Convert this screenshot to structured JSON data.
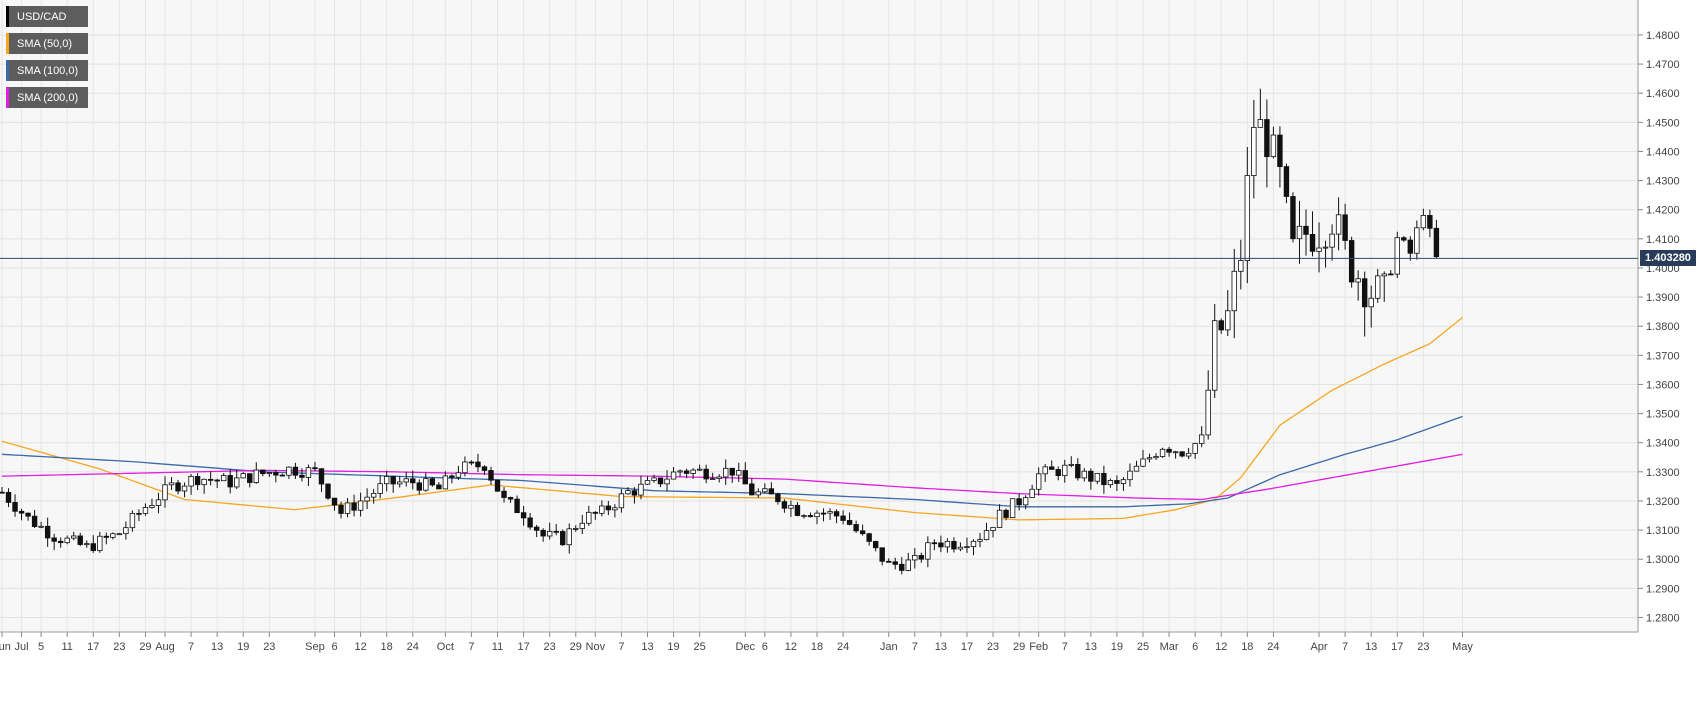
{
  "chart_data": {
    "type": "candlestick",
    "title": "USD/CAD",
    "ylim": [
      1.275,
      1.492
    ],
    "y_ticks": [
      "1.2800",
      "1.2900",
      "1.3000",
      "1.3100",
      "1.3200",
      "1.3300",
      "1.3400",
      "1.3500",
      "1.3600",
      "1.3700",
      "1.3800",
      "1.3900",
      "1.4000",
      "1.4100",
      "1.4200",
      "1.4300",
      "1.4400",
      "1.4500",
      "1.4600",
      "1.4700",
      "1.4800"
    ],
    "x_ticks": [
      {
        "label": "Jun",
        "i": 0
      },
      {
        "label": "Jul",
        "i": 3
      },
      {
        "label": "5",
        "i": 6
      },
      {
        "label": "11",
        "i": 10
      },
      {
        "label": "17",
        "i": 14
      },
      {
        "label": "23",
        "i": 18
      },
      {
        "label": "29",
        "i": 22
      },
      {
        "label": "Aug",
        "i": 25
      },
      {
        "label": "7",
        "i": 29
      },
      {
        "label": "13",
        "i": 33
      },
      {
        "label": "19",
        "i": 37
      },
      {
        "label": "23",
        "i": 41
      },
      {
        "label": "Sep",
        "i": 48
      },
      {
        "label": "6",
        "i": 51
      },
      {
        "label": "12",
        "i": 55
      },
      {
        "label": "18",
        "i": 59
      },
      {
        "label": "24",
        "i": 63
      },
      {
        "label": "Oct",
        "i": 68
      },
      {
        "label": "7",
        "i": 72
      },
      {
        "label": "11",
        "i": 76
      },
      {
        "label": "17",
        "i": 80
      },
      {
        "label": "23",
        "i": 84
      },
      {
        "label": "29",
        "i": 88
      },
      {
        "label": "Nov",
        "i": 91
      },
      {
        "label": "7",
        "i": 95
      },
      {
        "label": "13",
        "i": 99
      },
      {
        "label": "19",
        "i": 103
      },
      {
        "label": "25",
        "i": 107
      },
      {
        "label": "Dec",
        "i": 114
      },
      {
        "label": "6",
        "i": 117
      },
      {
        "label": "12",
        "i": 121
      },
      {
        "label": "18",
        "i": 125
      },
      {
        "label": "24",
        "i": 129
      },
      {
        "label": "Jan",
        "i": 136
      },
      {
        "label": "7",
        "i": 140
      },
      {
        "label": "13",
        "i": 144
      },
      {
        "label": "17",
        "i": 148
      },
      {
        "label": "23",
        "i": 152
      },
      {
        "label": "29",
        "i": 156
      },
      {
        "label": "Feb",
        "i": 159
      },
      {
        "label": "7",
        "i": 163
      },
      {
        "label": "13",
        "i": 167
      },
      {
        "label": "19",
        "i": 171
      },
      {
        "label": "25",
        "i": 175
      },
      {
        "label": "Mar",
        "i": 179
      },
      {
        "label": "6",
        "i": 183
      },
      {
        "label": "12",
        "i": 187
      },
      {
        "label": "18",
        "i": 191
      },
      {
        "label": "24",
        "i": 195
      },
      {
        "label": "Apr",
        "i": 202
      },
      {
        "label": "7",
        "i": 206
      },
      {
        "label": "13",
        "i": 210
      },
      {
        "label": "17",
        "i": 214
      },
      {
        "label": "23",
        "i": 218
      },
      {
        "label": "May",
        "i": 224
      }
    ],
    "last_price": "1.403280",
    "series": [
      {
        "name": "SMA (50,0)",
        "color": "#f5a623",
        "knots": [
          [
            0,
            1.3405
          ],
          [
            15,
            1.331
          ],
          [
            28,
            1.3205
          ],
          [
            45,
            1.317
          ],
          [
            60,
            1.321
          ],
          [
            75,
            1.3255
          ],
          [
            95,
            1.3215
          ],
          [
            120,
            1.321
          ],
          [
            140,
            1.316
          ],
          [
            156,
            1.3135
          ],
          [
            172,
            1.314
          ],
          [
            180,
            1.317
          ],
          [
            186,
            1.3205
          ],
          [
            190,
            1.328
          ],
          [
            196,
            1.346
          ],
          [
            204,
            1.358
          ],
          [
            212,
            1.367
          ],
          [
            219,
            1.374
          ],
          [
            224,
            1.383
          ]
        ]
      },
      {
        "name": "SMA (100,0)",
        "color": "#3b6aa8",
        "knots": [
          [
            0,
            1.336
          ],
          [
            20,
            1.3335
          ],
          [
            40,
            1.33
          ],
          [
            60,
            1.3285
          ],
          [
            80,
            1.327
          ],
          [
            100,
            1.3235
          ],
          [
            120,
            1.3225
          ],
          [
            140,
            1.3205
          ],
          [
            156,
            1.318
          ],
          [
            172,
            1.318
          ],
          [
            182,
            1.319
          ],
          [
            188,
            1.321
          ],
          [
            196,
            1.329
          ],
          [
            206,
            1.336
          ],
          [
            214,
            1.341
          ],
          [
            224,
            1.349
          ]
        ]
      },
      {
        "name": "SMA (200,0)",
        "color": "#e020e0",
        "knots": [
          [
            0,
            1.3285
          ],
          [
            20,
            1.3295
          ],
          [
            40,
            1.3305
          ],
          [
            60,
            1.33
          ],
          [
            80,
            1.329
          ],
          [
            100,
            1.3285
          ],
          [
            120,
            1.3275
          ],
          [
            140,
            1.3245
          ],
          [
            156,
            1.3225
          ],
          [
            174,
            1.321
          ],
          [
            184,
            1.3205
          ],
          [
            194,
            1.324
          ],
          [
            204,
            1.328
          ],
          [
            214,
            1.332
          ],
          [
            224,
            1.336
          ]
        ]
      }
    ],
    "keyframes": [
      [
        0,
        1.323
      ],
      [
        4,
        1.314
      ],
      [
        8,
        1.308
      ],
      [
        13,
        1.304
      ],
      [
        18,
        1.309
      ],
      [
        22,
        1.318
      ],
      [
        26,
        1.325
      ],
      [
        30,
        1.328
      ],
      [
        35,
        1.3265
      ],
      [
        39,
        1.329
      ],
      [
        44,
        1.331
      ],
      [
        48,
        1.33
      ],
      [
        52,
        1.316
      ],
      [
        55,
        1.32
      ],
      [
        59,
        1.326
      ],
      [
        63,
        1.3265
      ],
      [
        67,
        1.324
      ],
      [
        70,
        1.331
      ],
      [
        74,
        1.3325
      ],
      [
        77,
        1.32
      ],
      [
        80,
        1.316
      ],
      [
        83,
        1.308
      ],
      [
        86,
        1.307
      ],
      [
        89,
        1.314
      ],
      [
        92,
        1.316
      ],
      [
        96,
        1.323
      ],
      [
        100,
        1.326
      ],
      [
        104,
        1.3305
      ],
      [
        108,
        1.33
      ],
      [
        112,
        1.3305
      ],
      [
        115,
        1.323
      ],
      [
        119,
        1.321
      ],
      [
        122,
        1.317
      ],
      [
        126,
        1.316
      ],
      [
        129,
        1.3145
      ],
      [
        133,
        1.305
      ],
      [
        136,
        1.298
      ],
      [
        140,
        1.299
      ],
      [
        143,
        1.306
      ],
      [
        146,
        1.3055
      ],
      [
        150,
        1.308
      ],
      [
        153,
        1.315
      ],
      [
        156,
        1.32
      ],
      [
        159,
        1.329
      ],
      [
        163,
        1.331
      ],
      [
        167,
        1.328
      ],
      [
        171,
        1.325
      ],
      [
        175,
        1.333
      ],
      [
        178,
        1.339
      ],
      [
        181,
        1.337
      ],
      [
        184,
        1.341
      ],
      [
        186,
        1.375
      ],
      [
        188,
        1.383
      ],
      [
        190,
        1.405
      ],
      [
        192,
        1.45
      ],
      [
        194,
        1.445
      ],
      [
        196,
        1.43
      ],
      [
        198,
        1.405
      ],
      [
        200,
        1.412
      ],
      [
        202,
        1.413
      ],
      [
        204,
        1.418
      ],
      [
        206,
        1.405
      ],
      [
        208,
        1.398
      ],
      [
        210,
        1.392
      ],
      [
        212,
        1.39
      ],
      [
        214,
        1.41
      ],
      [
        216,
        1.405
      ],
      [
        218,
        1.42
      ],
      [
        220,
        1.403
      ]
    ],
    "n_bars": 221
  }
}
